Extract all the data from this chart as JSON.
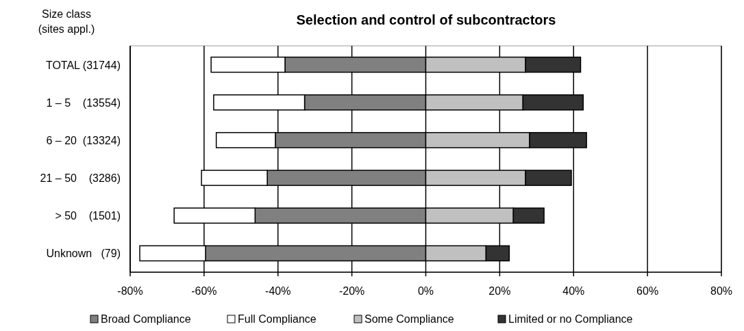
{
  "chart_data": {
    "type": "bar",
    "title": "Selection and control of subcontractors",
    "ylabel": "Size class\n(sites appl.)",
    "orientation": "horizontal",
    "stacked": true,
    "categories": [
      "TOTAL (31744)",
      "1 – 5    (13554)",
      "6 – 20  (13324)",
      "21 – 50    (3286)",
      "> 50    (1501)",
      "Unknown   (79)"
    ],
    "series": [
      {
        "name": "Broad Compliance",
        "color": "#808080",
        "values": [
          -38.1,
          -32.8,
          -40.7,
          -42.9,
          -46.2,
          -59.6
        ]
      },
      {
        "name": "Full Compliance",
        "color": "#ffffff",
        "values": [
          -20.0,
          -24.6,
          -16.0,
          -17.8,
          -21.9,
          -17.8
        ]
      },
      {
        "name": "Some Compliance",
        "color": "#c0c0c0",
        "values": [
          27.0,
          26.3,
          28.1,
          27.0,
          23.7,
          16.3
        ]
      },
      {
        "name": "Limited or no Compliance",
        "color": "#333333",
        "values": [
          14.9,
          16.3,
          15.4,
          12.4,
          8.3,
          6.3
        ]
      }
    ],
    "xlim": [
      -80,
      80
    ],
    "xticks": [
      {
        "value": -80,
        "label": "-80%"
      },
      {
        "value": -60,
        "label": "-60%"
      },
      {
        "value": -40,
        "label": "-40%"
      },
      {
        "value": -20,
        "label": "-20%"
      },
      {
        "value": 0,
        "label": "0%"
      },
      {
        "value": 20,
        "label": "20%"
      },
      {
        "value": 40,
        "label": "40%"
      },
      {
        "value": 60,
        "label": "60%"
      },
      {
        "value": 80,
        "label": "80%"
      }
    ],
    "grid": "x",
    "legend": "bottom"
  }
}
